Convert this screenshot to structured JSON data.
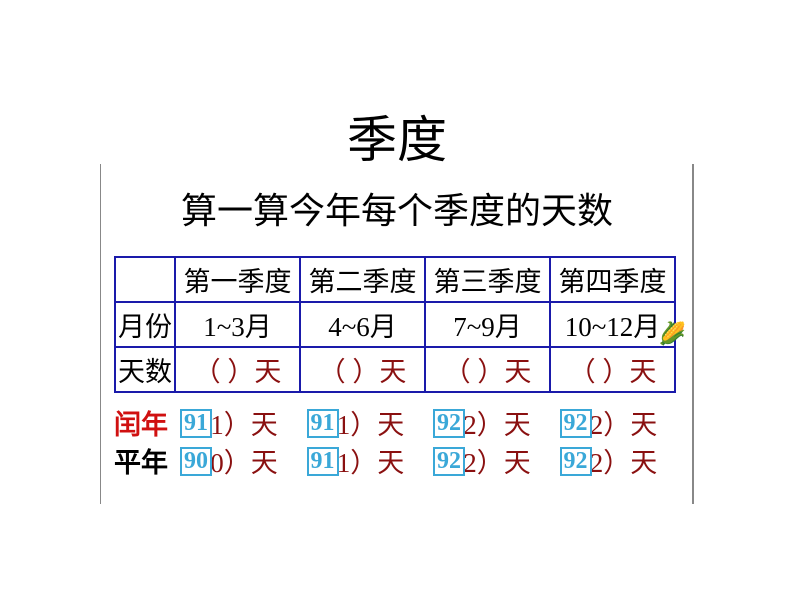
{
  "title": "季度",
  "subtitle": "算一算今年每个季度的天数",
  "table": {
    "headers": [
      "",
      "第一季度",
      "第二季度",
      "第三季度",
      "第四季度"
    ],
    "row_month_label": "月份",
    "months": [
      "1~3月",
      "4~6月",
      "7~9月",
      "10~12月"
    ],
    "row_days_label": "天数",
    "days_blank": "（  ）天"
  },
  "bottom": {
    "leap_label": "闰年",
    "common_label": "平年",
    "leap_original": [
      "91）天",
      "91）天",
      "92）天",
      "92）天"
    ],
    "common_original": [
      "90）天",
      "91）天",
      "92）天",
      "92）天"
    ],
    "leap_overlay": [
      "91",
      "91",
      "92",
      "92"
    ],
    "common_overlay": [
      "90",
      "91",
      "92",
      "92"
    ]
  },
  "colors": {
    "border": "#1a1aaa",
    "brown": "#8a1010",
    "red": "#d01010",
    "overlay_border": "#3aa8d8",
    "overlay_text": "#3aa8d8"
  }
}
